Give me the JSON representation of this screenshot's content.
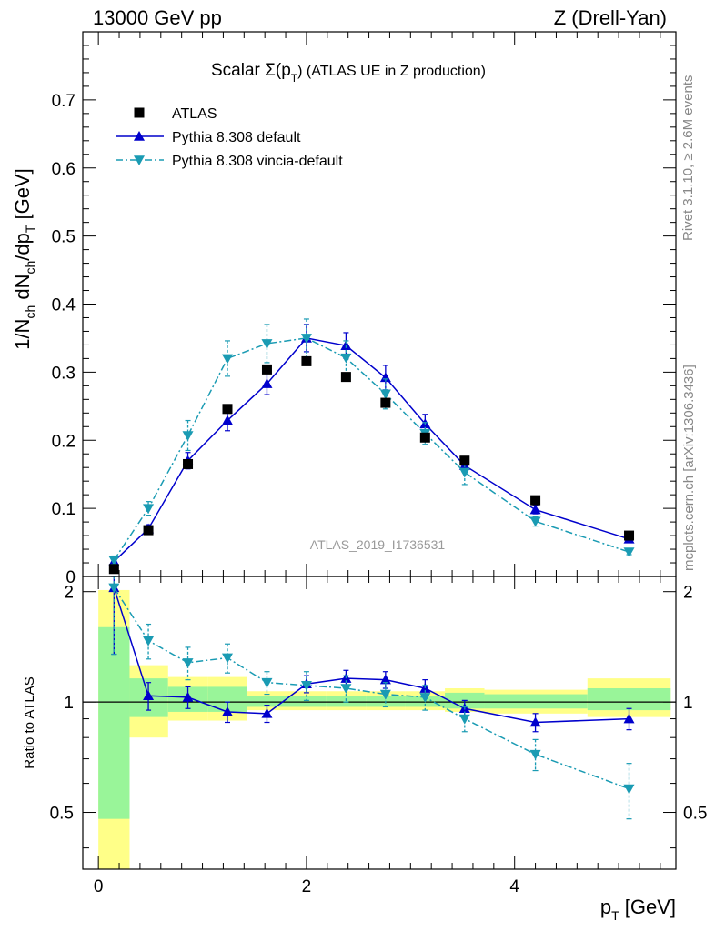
{
  "header": {
    "left": "13000 GeV pp",
    "right": "Z (Drell-Yan)"
  },
  "side": {
    "rivet": "Rivet 3.1.10, ≥ 2.6M events",
    "mcplots": "mcplots.cern.ch [arXiv:1306.3436]"
  },
  "chart_data": {
    "type": "line",
    "title": "Scalar Σ(p_T) (ATLAS UE in Z production)",
    "title_main": "Scalar Σ(p",
    "title_sub": "T",
    "title_rest": ") (ATLAS UE in Z production)",
    "watermark": "ATLAS_2019_I1736531",
    "xlabel": "p_T [GeV]",
    "xlabel_main": "p",
    "xlabel_sub": "T",
    "xlabel_rest": " [GeV]",
    "ylabel": "1/N_ch dN_ch/dp_T [GeV]",
    "ratio_ylabel": "Ratio to ATLAS",
    "xlim": [
      -0.15,
      5.55
    ],
    "ylim": [
      0,
      0.8
    ],
    "ratio_ylim": [
      0.35,
      2.2
    ],
    "x_ticks": [
      "0",
      "2",
      "4"
    ],
    "y_ticks": [
      "0",
      "0.1",
      "0.2",
      "0.3",
      "0.4",
      "0.5",
      "0.6",
      "0.7"
    ],
    "ratio_ticks": [
      "0.5",
      "1",
      "2"
    ],
    "legend_position": "top-left",
    "legend": [
      "ATLAS",
      "Pythia 8.308 default",
      "Pythia 8.308 vincia-default"
    ],
    "x": [
      0.15,
      0.48,
      0.86,
      1.24,
      1.62,
      2.0,
      2.38,
      2.76,
      3.14,
      3.52,
      4.2,
      5.1
    ],
    "series": [
      {
        "name": "ATLAS",
        "color": "#000000",
        "marker": "square",
        "values": [
          0.011,
          0.068,
          0.165,
          0.246,
          0.304,
          0.316,
          0.293,
          0.255,
          0.204,
          0.17,
          0.112,
          0.06
        ]
      },
      {
        "name": "Pythia 8.308 default",
        "color": "#0000cc",
        "marker": "triangle-up",
        "line": "solid",
        "values": [
          0.022,
          0.07,
          0.17,
          0.229,
          0.283,
          0.35,
          0.339,
          0.292,
          0.224,
          0.163,
          0.098,
          0.055
        ],
        "errors": [
          0.006,
          0.006,
          0.012,
          0.015,
          0.016,
          0.02,
          0.019,
          0.018,
          0.014,
          0.01,
          0.006,
          0.004
        ],
        "ratio": [
          2.05,
          1.04,
          1.03,
          0.94,
          0.93,
          1.12,
          1.16,
          1.15,
          1.09,
          0.96,
          0.88,
          0.9
        ],
        "ratio_errors": [
          0.7,
          0.09,
          0.07,
          0.06,
          0.05,
          0.06,
          0.06,
          0.06,
          0.06,
          0.05,
          0.05,
          0.06
        ]
      },
      {
        "name": "Pythia 8.308 vincia-default",
        "color": "#1a9bb3",
        "marker": "triangle-down",
        "line": "dash-dot",
        "values": [
          0.024,
          0.1,
          0.207,
          0.32,
          0.342,
          0.35,
          0.321,
          0.268,
          0.21,
          0.153,
          0.081,
          0.036
        ],
        "errors": [
          0.006,
          0.01,
          0.022,
          0.026,
          0.028,
          0.028,
          0.025,
          0.022,
          0.016,
          0.018,
          0.007,
          0.004
        ],
        "ratio": [
          2.05,
          1.47,
          1.28,
          1.32,
          1.13,
          1.11,
          1.09,
          1.05,
          1.03,
          0.9,
          0.72,
          0.58
        ],
        "ratio_errors": [
          0.7,
          0.16,
          0.13,
          0.12,
          0.08,
          0.1,
          0.09,
          0.08,
          0.08,
          0.07,
          0.07,
          0.1
        ]
      }
    ],
    "ratio_bands": [
      {
        "xlo": 0.0,
        "xhi": 0.3,
        "yellow": [
          0.35,
          2.02
        ],
        "green": [
          0.48,
          1.6
        ]
      },
      {
        "xlo": 0.3,
        "xhi": 0.67,
        "yellow": [
          0.8,
          1.26
        ],
        "green": [
          0.91,
          1.16
        ]
      },
      {
        "xlo": 0.67,
        "xhi": 1.05,
        "yellow": [
          0.89,
          1.17
        ],
        "green": [
          0.94,
          1.1
        ]
      },
      {
        "xlo": 1.05,
        "xhi": 1.43,
        "yellow": [
          0.89,
          1.17
        ],
        "green": [
          0.94,
          1.1
        ]
      },
      {
        "xlo": 1.43,
        "xhi": 1.81,
        "yellow": [
          0.95,
          1.07
        ],
        "green": [
          0.97,
          1.04
        ]
      },
      {
        "xlo": 1.81,
        "xhi": 2.19,
        "yellow": [
          0.95,
          1.07
        ],
        "green": [
          0.97,
          1.04
        ]
      },
      {
        "xlo": 2.19,
        "xhi": 2.57,
        "yellow": [
          0.95,
          1.07
        ],
        "green": [
          0.97,
          1.04
        ]
      },
      {
        "xlo": 2.57,
        "xhi": 2.95,
        "yellow": [
          0.95,
          1.07
        ],
        "green": [
          0.97,
          1.04
        ]
      },
      {
        "xlo": 2.95,
        "xhi": 3.33,
        "yellow": [
          0.95,
          1.07
        ],
        "green": [
          0.97,
          1.04
        ]
      },
      {
        "xlo": 3.33,
        "xhi": 3.71,
        "yellow": [
          0.94,
          1.09
        ],
        "green": [
          0.96,
          1.06
        ]
      },
      {
        "xlo": 3.71,
        "xhi": 4.7,
        "yellow": [
          0.93,
          1.08
        ],
        "green": [
          0.96,
          1.05
        ]
      },
      {
        "xlo": 4.7,
        "xhi": 5.5,
        "yellow": [
          0.91,
          1.16
        ],
        "green": [
          0.95,
          1.09
        ]
      }
    ]
  }
}
